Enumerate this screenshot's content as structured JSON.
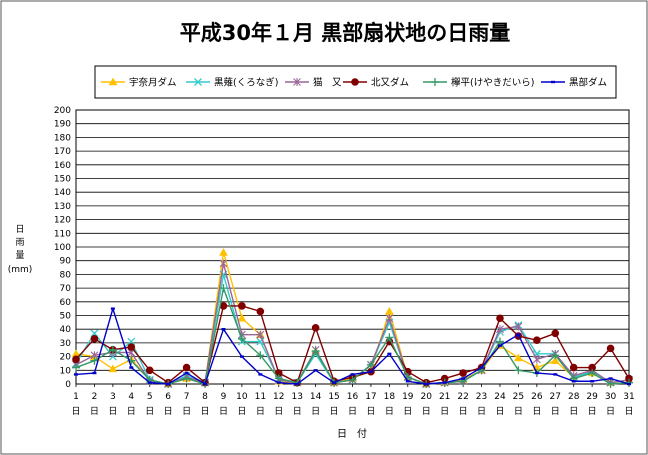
{
  "chart_data": {
    "type": "line",
    "title": "平成30年１月 黒部扇状地の日雨量",
    "xlabel": "日　付",
    "xlabel_unit": "日",
    "ylabel": "日雨量",
    "yunit": "(mm)",
    "ylim": [
      0,
      200
    ],
    "ystep": 10,
    "grid": true,
    "legend_position": "top",
    "x": [
      1,
      2,
      3,
      4,
      5,
      6,
      7,
      8,
      9,
      10,
      11,
      12,
      13,
      14,
      15,
      16,
      17,
      18,
      19,
      20,
      21,
      22,
      23,
      24,
      25,
      26,
      27,
      28,
      29,
      30,
      31
    ],
    "series": [
      {
        "name": "宇奈月ダム",
        "color": "#FFC000",
        "marker": "triangle",
        "values": [
          22,
          20,
          11,
          18,
          3,
          0,
          4,
          1,
          96,
          48,
          36,
          2,
          1,
          24,
          1,
          4,
          10,
          53,
          5,
          0,
          1,
          3,
          10,
          28,
          19,
          12,
          17,
          5,
          8,
          1,
          3
        ]
      },
      {
        "name": "黒薙(くろなぎ)",
        "color": "#33CCCC",
        "marker": "x",
        "values": [
          15,
          37,
          20,
          31,
          3,
          0,
          6,
          1,
          80,
          31,
          31,
          4,
          1,
          22,
          1,
          3,
          14,
          45,
          5,
          0,
          1,
          2,
          10,
          38,
          43,
          22,
          22,
          5,
          9,
          1,
          3
        ]
      },
      {
        "name": "猫　又",
        "color": "#996699",
        "marker": "star",
        "values": [
          14,
          21,
          23,
          23,
          2,
          0,
          5,
          1,
          88,
          36,
          36,
          3,
          1,
          25,
          1,
          3,
          14,
          48,
          5,
          0,
          1,
          2,
          10,
          40,
          42,
          18,
          22,
          6,
          10,
          1,
          3
        ]
      },
      {
        "name": "北又ダム",
        "color": "#800000",
        "marker": "circle",
        "values": [
          18,
          33,
          25,
          27,
          10,
          1,
          12,
          1,
          57,
          57,
          53,
          8,
          1,
          41,
          2,
          5,
          9,
          31,
          9,
          1,
          4,
          8,
          12,
          48,
          35,
          32,
          37,
          12,
          12,
          26,
          4
        ]
      },
      {
        "name": "欅平(けやきだいら)",
        "color": "#339966",
        "marker": "plus",
        "values": [
          12,
          17,
          25,
          17,
          3,
          0,
          4,
          0,
          70,
          33,
          21,
          4,
          1,
          24,
          1,
          3,
          14,
          34,
          5,
          0,
          1,
          2,
          10,
          31,
          10,
          8,
          21,
          4,
          8,
          0,
          1
        ]
      },
      {
        "name": "黒部ダム",
        "color": "#0000CC",
        "marker": "dash",
        "values": [
          7,
          8,
          55,
          12,
          1,
          0,
          8,
          0,
          40,
          20,
          7,
          1,
          0,
          10,
          1,
          7,
          9,
          22,
          2,
          0,
          1,
          4,
          12,
          28,
          36,
          8,
          7,
          2,
          2,
          4,
          0
        ]
      }
    ]
  }
}
